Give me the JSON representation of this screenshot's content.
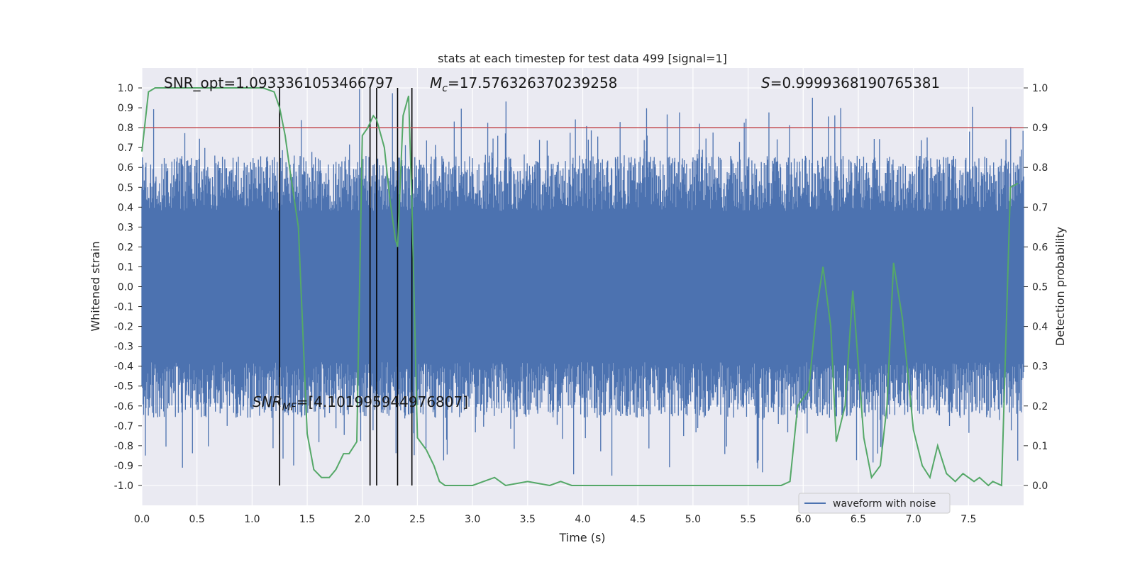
{
  "chart_data": {
    "type": "line",
    "title": "stats at each timestep for test data 499 [signal=1]",
    "xlabel": "Time (s)",
    "ylabel_left": "Whitened strain",
    "ylabel_right": "Detection probability",
    "xlim": [
      0.0,
      8.0
    ],
    "ylim_left": [
      -1.1,
      1.1
    ],
    "ylim_right": [
      -0.05,
      1.05
    ],
    "x_ticks": [
      "0.0",
      "0.5",
      "1.0",
      "1.5",
      "2.0",
      "2.5",
      "3.0",
      "3.5",
      "4.0",
      "4.5",
      "5.0",
      "5.5",
      "6.0",
      "6.5",
      "7.0",
      "7.5"
    ],
    "y_left_ticks": [
      "1.0",
      "0.9",
      "0.8",
      "0.7",
      "0.6",
      "0.5",
      "0.4",
      "0.3",
      "0.2",
      "0.1",
      "0.0",
      "-0.1",
      "-0.2",
      "-0.3",
      "-0.4",
      "-0.5",
      "-0.6",
      "-0.7",
      "-0.8",
      "-0.9",
      "-1.0"
    ],
    "y_right_ticks": [
      "1.0",
      "0.9",
      "0.8",
      "0.7",
      "0.6",
      "0.5",
      "0.4",
      "0.3",
      "0.2",
      "0.1",
      "0.0"
    ],
    "threshold": 0.9,
    "detection_markers_x": [
      1.25,
      2.07,
      2.13,
      2.32,
      2.45
    ],
    "waveform": {
      "name": "waveform with noise",
      "color": "#4c72b0",
      "core_amplitude": 0.38,
      "max_amplitude": 1.0
    },
    "detection_probability": {
      "color": "#55a868",
      "x": [
        0.0,
        0.06,
        0.12,
        0.25,
        0.5,
        0.75,
        1.0,
        1.1,
        1.2,
        1.25,
        1.3,
        1.35,
        1.42,
        1.5,
        1.56,
        1.63,
        1.7,
        1.76,
        1.83,
        1.88,
        1.95,
        2.0,
        2.05,
        2.1,
        2.13,
        2.2,
        2.25,
        2.3,
        2.32,
        2.37,
        2.42,
        2.45,
        2.5,
        2.58,
        2.65,
        2.7,
        2.75,
        2.85,
        3.0,
        3.1,
        3.2,
        3.3,
        3.5,
        3.7,
        3.8,
        3.9,
        4.0,
        4.5,
        5.0,
        5.5,
        5.8,
        5.88,
        5.95,
        6.05,
        6.12,
        6.18,
        6.25,
        6.3,
        6.38,
        6.45,
        6.55,
        6.62,
        6.7,
        6.76,
        6.82,
        6.9,
        7.0,
        7.08,
        7.15,
        7.22,
        7.3,
        7.38,
        7.45,
        7.55,
        7.6,
        7.68,
        7.72,
        7.8,
        7.88,
        7.95
      ],
      "y": [
        0.84,
        0.99,
        1.0,
        1.0,
        1.0,
        1.0,
        1.0,
        1.0,
        0.99,
        0.95,
        0.88,
        0.78,
        0.65,
        0.13,
        0.04,
        0.02,
        0.02,
        0.04,
        0.08,
        0.08,
        0.11,
        0.88,
        0.9,
        0.93,
        0.92,
        0.85,
        0.72,
        0.62,
        0.6,
        0.93,
        0.98,
        0.71,
        0.12,
        0.09,
        0.05,
        0.01,
        0.0,
        0.0,
        0.0,
        0.01,
        0.02,
        0.0,
        0.01,
        0.0,
        0.01,
        0.0,
        0.0,
        0.0,
        0.0,
        0.0,
        0.0,
        0.01,
        0.2,
        0.24,
        0.44,
        0.55,
        0.4,
        0.11,
        0.2,
        0.49,
        0.12,
        0.02,
        0.05,
        0.2,
        0.56,
        0.42,
        0.14,
        0.05,
        0.02,
        0.1,
        0.03,
        0.01,
        0.03,
        0.01,
        0.02,
        0.0,
        0.01,
        0.0,
        0.75,
        0.76
      ]
    },
    "annotations": {
      "snr_opt": "SNR_opt=1.0933361053466797",
      "mc_prefix": "M",
      "mc_sub": "c",
      "mc_value": "=17.576326370239258",
      "s_prefix": "S",
      "s_value": "=0.9999368190765381",
      "snr_mf_prefix": "SNR",
      "snr_mf_sub": "MF",
      "snr_mf_value": "=[4.101995944976807]"
    },
    "legend": {
      "label": "waveform with noise",
      "position": "lower-right"
    }
  },
  "colors": {
    "axes_bg": "#eaeaf2",
    "grid": "#ffffff",
    "threshold": "#c44e52",
    "marker": "#000000"
  }
}
